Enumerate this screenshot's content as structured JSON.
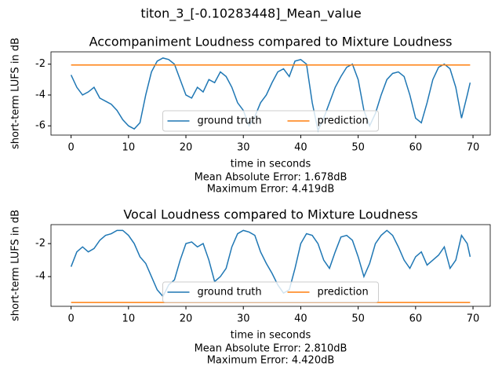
{
  "title": "titon_3_[-0.10283448]_Mean_value",
  "chart_data": [
    {
      "type": "line",
      "title": "Accompaniment Loudness compared to Mixture Loudness",
      "x_label": "time in seconds",
      "y_label": "short-term LUFS in dB",
      "annotations": [
        "Mean Absolute Error: 1.678dB",
        "Maximum Error: 4.419dB"
      ],
      "x": [
        0,
        1,
        2,
        3,
        4,
        5,
        6,
        7,
        8,
        9,
        10,
        11,
        12,
        13,
        14,
        15,
        16,
        17,
        18,
        19,
        20,
        21,
        22,
        23,
        24,
        25,
        26,
        27,
        28,
        29,
        30,
        31,
        32,
        33,
        34,
        35,
        36,
        37,
        38,
        39,
        40,
        41,
        42,
        43,
        44,
        45,
        46,
        47,
        48,
        49,
        50,
        51,
        52,
        53,
        54,
        55,
        56,
        57,
        58,
        59,
        60,
        61,
        62,
        63,
        64,
        65,
        66,
        67,
        68,
        69,
        69.5
      ],
      "series": [
        {
          "name": "ground truth",
          "color": "#1f77b4",
          "values": [
            -2.7,
            -3.5,
            -4.0,
            -3.8,
            -3.5,
            -4.2,
            -4.4,
            -4.6,
            -5.0,
            -5.6,
            -6.0,
            -6.2,
            -5.8,
            -4.0,
            -2.5,
            -1.8,
            -1.6,
            -1.7,
            -2.0,
            -3.0,
            -4.0,
            -4.2,
            -3.5,
            -3.8,
            -3.0,
            -3.2,
            -2.5,
            -2.8,
            -3.5,
            -4.5,
            -5.0,
            -6.0,
            -5.4,
            -4.5,
            -4.0,
            -3.2,
            -2.5,
            -2.3,
            -2.8,
            -1.8,
            -1.7,
            -2.0,
            -4.5,
            -6.3,
            -5.5,
            -4.5,
            -3.5,
            -2.8,
            -2.2,
            -2.0,
            -3.0,
            -5.0,
            -6.0,
            -5.2,
            -4.0,
            -3.0,
            -2.6,
            -2.5,
            -2.8,
            -4.0,
            -5.5,
            -5.8,
            -4.5,
            -3.0,
            -2.2,
            -2.0,
            -2.3,
            -3.5,
            -5.5,
            -4.0,
            -3.2
          ]
        },
        {
          "name": "prediction",
          "color": "#ff7f0e",
          "values": [
            -2.05,
            -2.05,
            -2.05,
            -2.05,
            -2.05,
            -2.05,
            -2.05,
            -2.05,
            -2.05,
            -2.05,
            -2.05,
            -2.05,
            -2.05,
            -2.05,
            -2.05,
            -2.05,
            -2.05,
            -2.05,
            -2.05,
            -2.05,
            -2.05,
            -2.05,
            -2.05,
            -2.05,
            -2.05,
            -2.05,
            -2.05,
            -2.05,
            -2.05,
            -2.05,
            -2.05,
            -2.05,
            -2.05,
            -2.05,
            -2.05,
            -2.05,
            -2.05,
            -2.05,
            -2.05,
            -2.05,
            -2.05,
            -2.05,
            -2.05,
            -2.05,
            -2.05,
            -2.05,
            -2.05,
            -2.05,
            -2.05,
            -2.05,
            -2.05,
            -2.05,
            -2.05,
            -2.05,
            -2.05,
            -2.05,
            -2.05,
            -2.05,
            -2.05,
            -2.05,
            -2.05,
            -2.05,
            -2.05,
            -2.05,
            -2.05,
            -2.05,
            -2.05,
            -2.05,
            -2.05,
            -2.05,
            -2.05
          ]
        }
      ],
      "xlim": [
        -3.5,
        73
      ],
      "ylim": [
        -6.6,
        -1.2
      ],
      "xticks": [
        0,
        10,
        20,
        30,
        40,
        50,
        60,
        70
      ],
      "yticks": [
        -6,
        -4,
        -2
      ],
      "legend": "lower center"
    },
    {
      "type": "line",
      "title": "Vocal Loudness compared to Mixture Loudness",
      "x_label": "time in seconds",
      "y_label": "short-term LUFS in dB",
      "annotations": [
        "Mean Absolute Error: 2.810dB",
        "Maximum Error: 4.420dB"
      ],
      "x": [
        0,
        1,
        2,
        3,
        4,
        5,
        6,
        7,
        8,
        9,
        10,
        11,
        12,
        13,
        14,
        15,
        16,
        17,
        18,
        19,
        20,
        21,
        22,
        23,
        24,
        25,
        26,
        27,
        28,
        29,
        30,
        31,
        32,
        33,
        34,
        35,
        36,
        37,
        38,
        39,
        40,
        41,
        42,
        43,
        44,
        45,
        46,
        47,
        48,
        49,
        50,
        51,
        52,
        53,
        54,
        55,
        56,
        57,
        58,
        59,
        60,
        61,
        62,
        63,
        64,
        65,
        66,
        67,
        68,
        69,
        69.5
      ],
      "series": [
        {
          "name": "ground truth",
          "color": "#1f77b4",
          "values": [
            -3.4,
            -2.5,
            -2.2,
            -2.5,
            -2.3,
            -1.8,
            -1.5,
            -1.4,
            -1.2,
            -1.2,
            -1.5,
            -2.0,
            -2.8,
            -3.2,
            -4.0,
            -4.8,
            -5.2,
            -4.5,
            -4.2,
            -3.0,
            -2.0,
            -1.9,
            -2.2,
            -2.0,
            -3.0,
            -4.3,
            -4.0,
            -3.5,
            -2.2,
            -1.4,
            -1.2,
            -1.3,
            -1.5,
            -2.5,
            -3.2,
            -3.8,
            -4.5,
            -5.0,
            -4.8,
            -3.5,
            -2.0,
            -1.4,
            -1.5,
            -2.0,
            -3.0,
            -3.5,
            -2.5,
            -1.6,
            -1.5,
            -1.8,
            -2.8,
            -4.0,
            -3.2,
            -2.0,
            -1.5,
            -1.2,
            -1.5,
            -2.2,
            -3.0,
            -3.5,
            -2.8,
            -2.5,
            -3.3,
            -3.0,
            -2.7,
            -2.2,
            -3.5,
            -3.0,
            -1.5,
            -2.0,
            -2.8
          ]
        },
        {
          "name": "prediction",
          "color": "#ff7f0e",
          "values": [
            -5.57,
            -5.57,
            -5.57,
            -5.57,
            -5.57,
            -5.57,
            -5.57,
            -5.57,
            -5.57,
            -5.57,
            -5.57,
            -5.57,
            -5.57,
            -5.57,
            -5.57,
            -5.57,
            -5.57,
            -5.57,
            -5.57,
            -5.57,
            -5.57,
            -5.57,
            -5.57,
            -5.57,
            -5.57,
            -5.57,
            -5.57,
            -5.57,
            -5.57,
            -5.57,
            -5.57,
            -5.57,
            -5.57,
            -5.57,
            -5.57,
            -5.57,
            -5.57,
            -5.57,
            -5.57,
            -5.57,
            -5.57,
            -5.57,
            -5.57,
            -5.57,
            -5.57,
            -5.57,
            -5.57,
            -5.57,
            -5.57,
            -5.57,
            -5.57,
            -5.57,
            -5.57,
            -5.57,
            -5.57,
            -5.57,
            -5.57,
            -5.57,
            -5.57,
            -5.57,
            -5.57,
            -5.57,
            -5.57,
            -5.57,
            -5.57,
            -5.57,
            -5.57,
            -5.57,
            -5.57,
            -5.57,
            -5.57
          ]
        }
      ],
      "xlim": [
        -3.5,
        73
      ],
      "ylim": [
        -5.8,
        -0.85
      ],
      "xticks": [
        0,
        10,
        20,
        30,
        40,
        50,
        60,
        70
      ],
      "yticks": [
        -4,
        -2
      ],
      "legend": "lower center"
    }
  ]
}
